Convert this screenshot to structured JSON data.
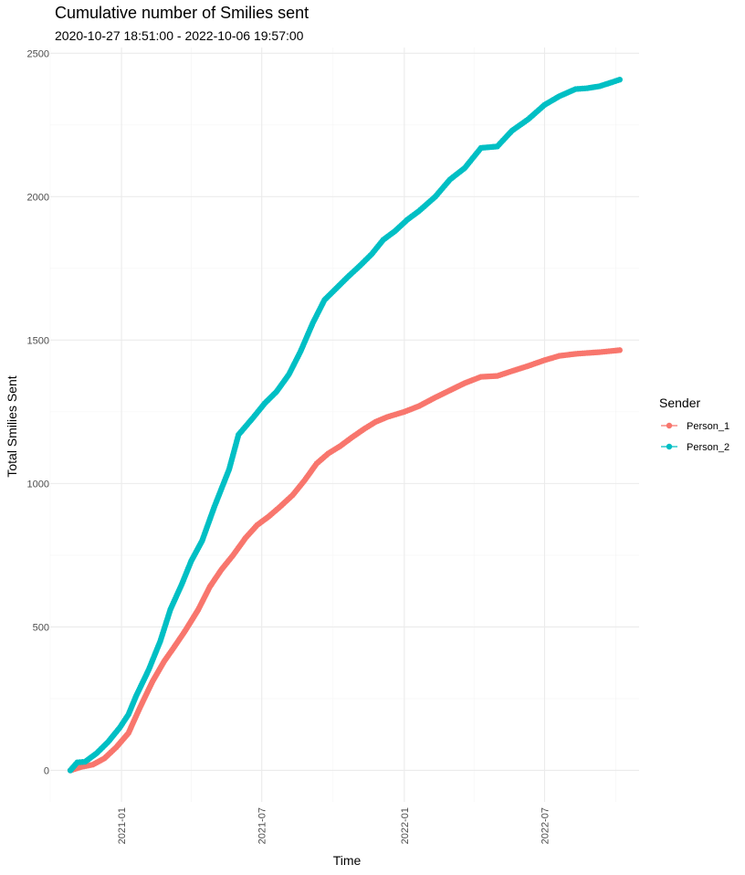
{
  "chart_data": {
    "type": "line",
    "title": "Cumulative number of Smilies sent",
    "subtitle": "2020-10-27 18:51:00  -  2022-10-06 19:57:00",
    "xlabel": "Time",
    "ylabel": "Total Smilies Sent",
    "x_ticks": [
      "2021-01",
      "2021-07",
      "2022-01",
      "2022-07"
    ],
    "y_ticks": [
      "0",
      "500",
      "1000",
      "1500",
      "2000",
      "2500"
    ],
    "xlim": [
      "2020-10-01",
      "2022-10-31"
    ],
    "ylim": [
      -110,
      2520
    ],
    "grid": true,
    "legend": {
      "title": "Sender",
      "position": "right"
    },
    "markers": true,
    "series": [
      {
        "name": "Person_1",
        "color": "#F8766D",
        "points": [
          [
            "2020-10-27",
            0
          ],
          [
            "2020-11-10",
            12
          ],
          [
            "2020-11-25",
            20
          ],
          [
            "2020-12-10",
            42
          ],
          [
            "2020-12-25",
            80
          ],
          [
            "2021-01-10",
            130
          ],
          [
            "2021-01-25",
            220
          ],
          [
            "2021-02-10",
            310
          ],
          [
            "2021-02-25",
            380
          ],
          [
            "2021-03-10",
            430
          ],
          [
            "2021-03-25",
            490
          ],
          [
            "2021-04-10",
            560
          ],
          [
            "2021-04-25",
            640
          ],
          [
            "2021-05-10",
            700
          ],
          [
            "2021-05-25",
            750
          ],
          [
            "2021-06-10",
            810
          ],
          [
            "2021-06-25",
            855
          ],
          [
            "2021-07-10",
            885
          ],
          [
            "2021-07-25",
            920
          ],
          [
            "2021-08-10",
            960
          ],
          [
            "2021-08-25",
            1010
          ],
          [
            "2021-09-10",
            1070
          ],
          [
            "2021-09-25",
            1105
          ],
          [
            "2021-10-10",
            1130
          ],
          [
            "2021-10-25",
            1160
          ],
          [
            "2021-11-10",
            1190
          ],
          [
            "2021-11-25",
            1215
          ],
          [
            "2021-12-10",
            1232
          ],
          [
            "2022-01-01",
            1250
          ],
          [
            "2022-01-20",
            1270
          ],
          [
            "2022-02-10",
            1300
          ],
          [
            "2022-03-01",
            1325
          ],
          [
            "2022-03-20",
            1350
          ],
          [
            "2022-04-10",
            1372
          ],
          [
            "2022-05-01",
            1375
          ],
          [
            "2022-05-20",
            1392
          ],
          [
            "2022-06-10",
            1410
          ],
          [
            "2022-07-01",
            1430
          ],
          [
            "2022-07-20",
            1445
          ],
          [
            "2022-08-10",
            1452
          ],
          [
            "2022-08-25",
            1455
          ],
          [
            "2022-09-10",
            1458
          ],
          [
            "2022-09-25",
            1462
          ],
          [
            "2022-10-06",
            1465
          ]
        ]
      },
      {
        "name": "Person_2",
        "color": "#00BFC4",
        "points": [
          [
            "2020-10-27",
            0
          ],
          [
            "2020-11-05",
            28
          ],
          [
            "2020-11-15",
            30
          ],
          [
            "2020-11-30",
            60
          ],
          [
            "2020-12-15",
            100
          ],
          [
            "2020-12-30",
            150
          ],
          [
            "2021-01-10",
            195
          ],
          [
            "2021-01-20",
            260
          ],
          [
            "2021-02-05",
            350
          ],
          [
            "2021-02-20",
            450
          ],
          [
            "2021-03-05",
            560
          ],
          [
            "2021-03-20",
            650
          ],
          [
            "2021-04-01",
            730
          ],
          [
            "2021-04-15",
            800
          ],
          [
            "2021-05-01",
            920
          ],
          [
            "2021-05-20",
            1050
          ],
          [
            "2021-06-01",
            1170
          ],
          [
            "2021-06-20",
            1230
          ],
          [
            "2021-07-05",
            1280
          ],
          [
            "2021-07-20",
            1320
          ],
          [
            "2021-08-05",
            1380
          ],
          [
            "2021-08-20",
            1460
          ],
          [
            "2021-09-05",
            1560
          ],
          [
            "2021-09-20",
            1640
          ],
          [
            "2021-10-05",
            1680
          ],
          [
            "2021-10-20",
            1720
          ],
          [
            "2021-11-05",
            1760
          ],
          [
            "2021-11-20",
            1800
          ],
          [
            "2021-12-05",
            1850
          ],
          [
            "2021-12-20",
            1880
          ],
          [
            "2022-01-05",
            1920
          ],
          [
            "2022-01-20",
            1950
          ],
          [
            "2022-02-10",
            2000
          ],
          [
            "2022-03-01",
            2060
          ],
          [
            "2022-03-20",
            2100
          ],
          [
            "2022-04-10",
            2170
          ],
          [
            "2022-05-01",
            2175
          ],
          [
            "2022-05-20",
            2230
          ],
          [
            "2022-06-10",
            2270
          ],
          [
            "2022-07-01",
            2320
          ],
          [
            "2022-07-20",
            2350
          ],
          [
            "2022-08-10",
            2375
          ],
          [
            "2022-08-25",
            2378
          ],
          [
            "2022-09-10",
            2385
          ],
          [
            "2022-09-25",
            2398
          ],
          [
            "2022-10-06",
            2408
          ]
        ]
      }
    ]
  }
}
